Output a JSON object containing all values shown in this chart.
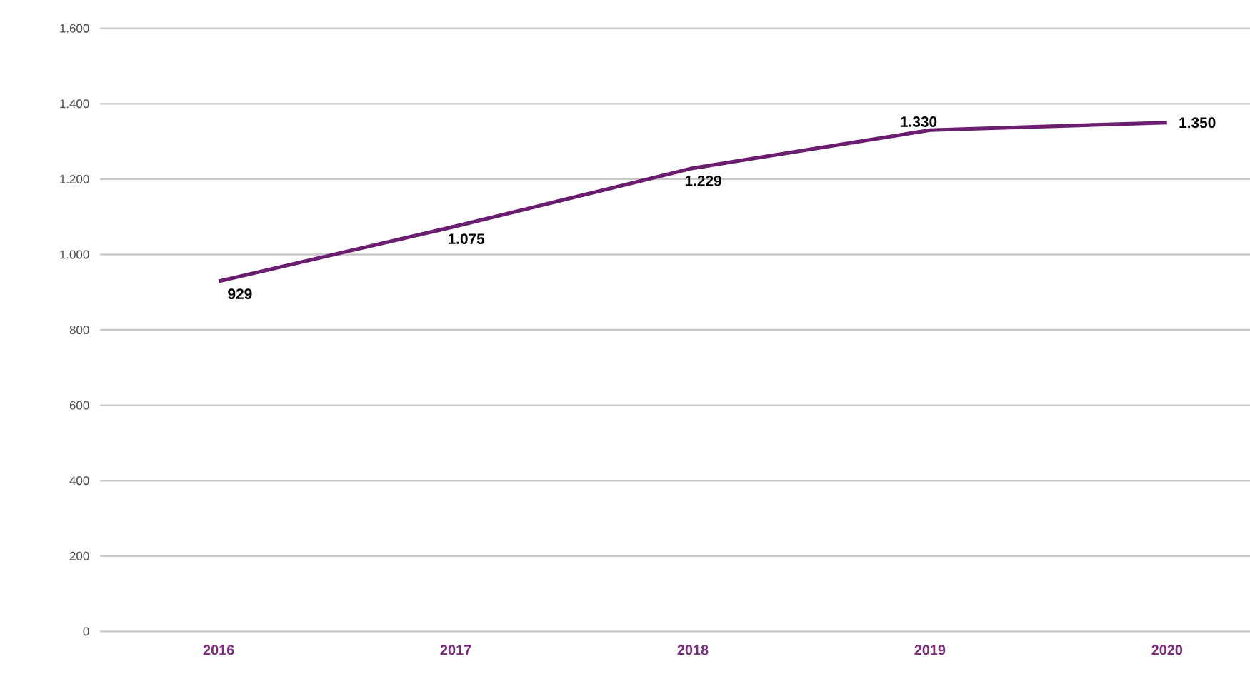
{
  "chart_data": {
    "type": "line",
    "categories": [
      "2016",
      "2017",
      "2018",
      "2019",
      "2020"
    ],
    "series": [
      {
        "color": "#6b1d6f",
        "values": [
          929,
          1075,
          1229,
          1330,
          1350
        ],
        "value_labels": [
          "929",
          "1.075",
          "1.229",
          "1.330",
          "1.350"
        ]
      }
    ],
    "ylim": [
      0,
      1600
    ],
    "yticks": [
      {
        "value": 0,
        "label": "0"
      },
      {
        "value": 200,
        "label": "200"
      },
      {
        "value": 400,
        "label": "400"
      },
      {
        "value": 600,
        "label": "600"
      },
      {
        "value": 800,
        "label": "800"
      },
      {
        "value": 1000,
        "label": "1.000"
      },
      {
        "value": 1200,
        "label": "1.200"
      },
      {
        "value": 1400,
        "label": "1.400"
      },
      {
        "value": 1600,
        "label": "1.600"
      }
    ],
    "grid": "y",
    "marker": "none",
    "line_style": "solid"
  }
}
